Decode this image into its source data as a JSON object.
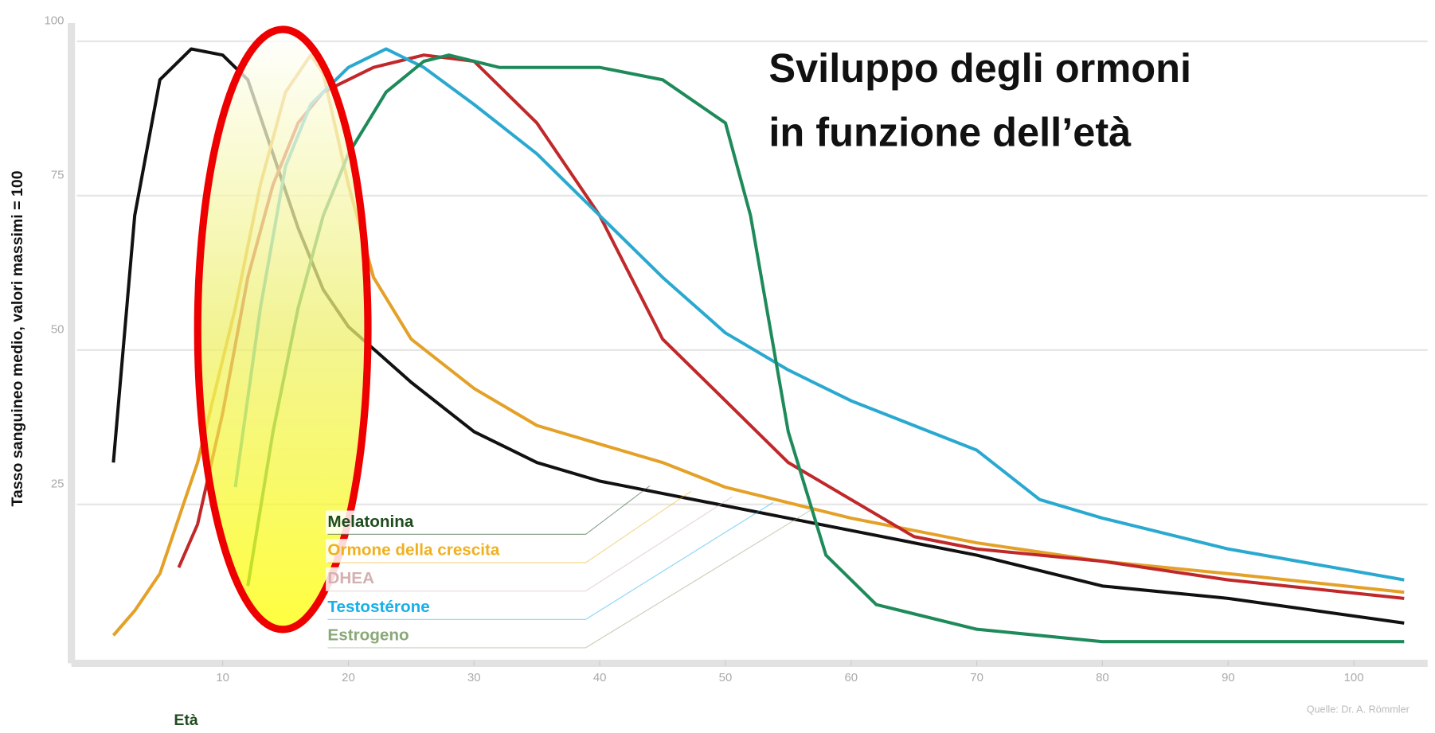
{
  "chart_data": {
    "type": "line",
    "title_lines": [
      "Sviluppo degli ormoni",
      "in funzione dell’età"
    ],
    "y_label": "Tasso sanguineo medio, valori massimi = 100",
    "x_label": "Età",
    "source": "Quelle: Dr. A. Römmler",
    "xlim": [
      0,
      105
    ],
    "ylim": [
      0,
      100
    ],
    "xticks": [
      10,
      20,
      30,
      40,
      50,
      60,
      70,
      80,
      90,
      100
    ],
    "yticks": [
      25,
      50,
      75,
      100
    ],
    "grid": true,
    "series": [
      {
        "name": "Melatonina",
        "color": "#111111",
        "label_color": "#1f4d1f",
        "x": [
          1.3,
          3,
          5,
          7.5,
          10,
          12,
          14,
          16,
          18,
          20,
          25,
          30,
          35,
          40,
          50,
          60,
          70,
          80,
          90,
          104
        ],
        "values": [
          30,
          70,
          92,
          97,
          96,
          92,
          80,
          68,
          58,
          52,
          43,
          35,
          30,
          27,
          23,
          19,
          15,
          10,
          8,
          4
        ]
      },
      {
        "name": "Ormone della crescita",
        "color": "#e4a128",
        "label_color": "#f0b020",
        "x": [
          1.3,
          3,
          5,
          8,
          11,
          13,
          15,
          17,
          18,
          20,
          22,
          25,
          30,
          35,
          40,
          45,
          50,
          60,
          70,
          80,
          90,
          104
        ],
        "values": [
          2,
          6,
          12,
          30,
          55,
          75,
          90,
          96,
          93,
          75,
          60,
          50,
          42,
          36,
          33,
          30,
          26,
          21,
          17,
          14,
          12,
          9
        ]
      },
      {
        "name": "DHEA",
        "color": "#c0282a",
        "label_color": "#d4b0b0",
        "x": [
          6.5,
          8,
          10,
          12,
          14,
          16,
          18,
          22,
          26,
          30,
          35,
          40,
          45,
          50,
          55,
          60,
          65,
          70,
          80,
          90,
          104
        ],
        "values": [
          13,
          20,
          38,
          60,
          75,
          85,
          90,
          94,
          96,
          95,
          85,
          70,
          50,
          40,
          30,
          24,
          18,
          16,
          14,
          11,
          8
        ]
      },
      {
        "name": "Testostérone",
        "color": "#2aa9d0",
        "label_color": "#18b0e8",
        "x": [
          11,
          13,
          15,
          17,
          20,
          23,
          26,
          30,
          35,
          40,
          45,
          50,
          55,
          60,
          70,
          75,
          80,
          90,
          104
        ],
        "values": [
          26,
          55,
          78,
          88,
          94,
          97,
          94,
          88,
          80,
          70,
          60,
          51,
          45,
          40,
          32,
          24,
          21,
          16,
          11
        ]
      },
      {
        "name": "Estrogeno",
        "color": "#1e8a5a",
        "label_color": "#8aa878",
        "x": [
          12,
          14,
          16,
          18,
          20,
          23,
          26,
          28,
          32,
          40,
          45,
          50,
          52,
          55,
          58,
          62,
          70,
          80,
          104
        ],
        "values": [
          10,
          35,
          55,
          70,
          80,
          90,
          95,
          96,
          94,
          94,
          92,
          85,
          70,
          35,
          15,
          7,
          3,
          1,
          1
        ]
      }
    ]
  }
}
